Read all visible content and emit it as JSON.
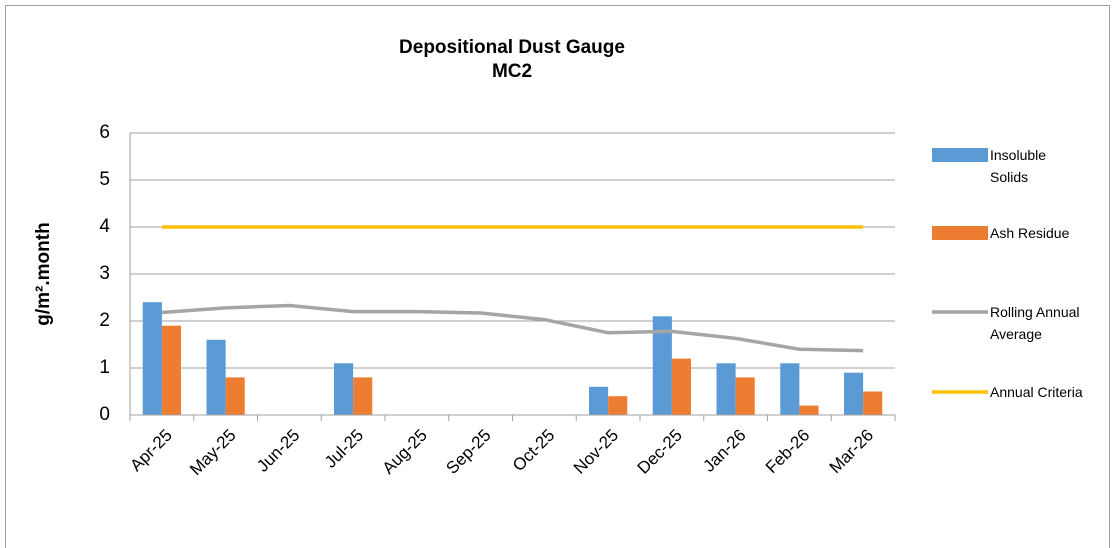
{
  "chart_data": {
    "type": "bar_line",
    "title": "Depositional Dust Gauge",
    "subtitle": "MC2",
    "y_label": "g/m².month",
    "categories": [
      "Apr-25",
      "May-25",
      "Jun-25",
      "Jul-25",
      "Aug-25",
      "Sep-25",
      "Oct-25",
      "Nov-25",
      "Dec-25",
      "Jan-26",
      "Feb-26",
      "Mar-26"
    ],
    "series": [
      {
        "name": "Insoluble Solids",
        "kind": "bar",
        "color": "#5b9bd5",
        "values": [
          2.4,
          1.6,
          null,
          1.1,
          null,
          null,
          null,
          0.6,
          2.1,
          1.1,
          1.1,
          0.9
        ]
      },
      {
        "name": "Ash Residue",
        "kind": "bar",
        "color": "#ed7d31",
        "values": [
          1.9,
          0.8,
          null,
          0.8,
          null,
          null,
          null,
          0.4,
          1.2,
          0.8,
          0.2,
          0.5
        ]
      },
      {
        "name": "Rolling Annual Average",
        "kind": "line",
        "color": "#a5a5a5",
        "values": [
          2.18,
          2.28,
          2.33,
          2.2,
          2.2,
          2.17,
          2.03,
          1.75,
          1.78,
          1.63,
          1.4,
          1.37
        ]
      },
      {
        "name": "Annual Criteria",
        "kind": "line",
        "color": "#ffc000",
        "values": [
          4,
          4,
          4,
          4,
          4,
          4,
          4,
          4,
          4,
          4,
          4,
          4
        ]
      }
    ],
    "ylim": [
      0,
      6
    ],
    "yticks": [
      0,
      1,
      2,
      3,
      4,
      5,
      6
    ],
    "grid": true
  }
}
